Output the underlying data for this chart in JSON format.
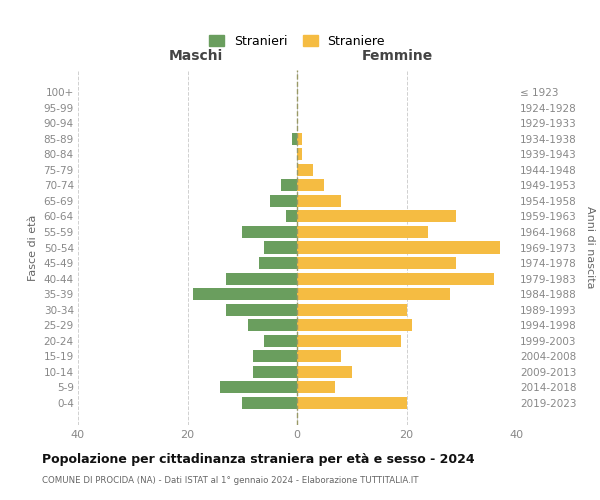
{
  "age_groups": [
    "100+",
    "95-99",
    "90-94",
    "85-89",
    "80-84",
    "75-79",
    "70-74",
    "65-69",
    "60-64",
    "55-59",
    "50-54",
    "45-49",
    "40-44",
    "35-39",
    "30-34",
    "25-29",
    "20-24",
    "15-19",
    "10-14",
    "5-9",
    "0-4"
  ],
  "birth_years": [
    "≤ 1923",
    "1924-1928",
    "1929-1933",
    "1934-1938",
    "1939-1943",
    "1944-1948",
    "1949-1953",
    "1954-1958",
    "1959-1963",
    "1964-1968",
    "1969-1973",
    "1974-1978",
    "1979-1983",
    "1984-1988",
    "1989-1993",
    "1994-1998",
    "1999-2003",
    "2004-2008",
    "2009-2013",
    "2014-2018",
    "2019-2023"
  ],
  "maschi": [
    0,
    0,
    0,
    1,
    0,
    0,
    3,
    5,
    2,
    10,
    6,
    7,
    13,
    19,
    13,
    9,
    6,
    8,
    8,
    14,
    10
  ],
  "femmine": [
    0,
    0,
    0,
    1,
    1,
    3,
    5,
    8,
    29,
    24,
    37,
    29,
    36,
    28,
    20,
    21,
    19,
    8,
    10,
    7,
    20
  ],
  "color_maschi": "#6a9e5e",
  "color_femmine": "#f5bc42",
  "title": "Popolazione per cittadinanza straniera per età e sesso - 2024",
  "subtitle": "COMUNE DI PROCIDA (NA) - Dati ISTAT al 1° gennaio 2024 - Elaborazione TUTTITALIA.IT",
  "xlabel_left": "Maschi",
  "xlabel_right": "Femmine",
  "ylabel_left": "Fasce di età",
  "ylabel_right": "Anni di nascita",
  "legend_maschi": "Stranieri",
  "legend_femmine": "Straniere",
  "xlim": 40,
  "background_color": "#ffffff",
  "grid_color": "#d0d0d0"
}
